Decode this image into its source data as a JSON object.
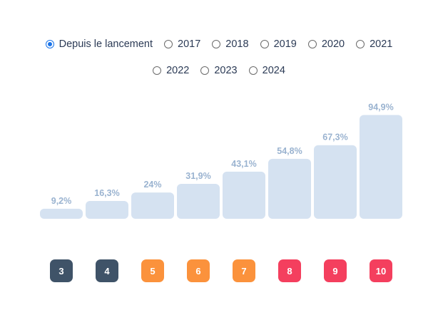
{
  "filters": {
    "options": [
      {
        "label": "Depuis le lancement",
        "checked": true
      },
      {
        "label": "2017",
        "checked": false
      },
      {
        "label": "2018",
        "checked": false
      },
      {
        "label": "2019",
        "checked": false
      },
      {
        "label": "2020",
        "checked": false
      },
      {
        "label": "2021",
        "checked": false
      },
      {
        "label": "2022",
        "checked": false
      },
      {
        "label": "2023",
        "checked": false
      },
      {
        "label": "2024",
        "checked": false
      }
    ]
  },
  "chart_data": {
    "type": "bar",
    "categories": [
      "3",
      "4",
      "5",
      "6",
      "7",
      "8",
      "9",
      "10"
    ],
    "values": [
      9.2,
      16.3,
      24,
      31.9,
      43.1,
      54.8,
      67.3,
      94.9
    ],
    "value_labels": [
      "9,2%",
      "16,3%",
      "24%",
      "31,9%",
      "43,1%",
      "54,8%",
      "67,3%",
      "94,9%"
    ],
    "category_colors": [
      "#3f5368",
      "#3f5368",
      "#fb923c",
      "#fb923c",
      "#fb923c",
      "#f43f5e",
      "#f43f5e",
      "#f43f5e"
    ],
    "bar_color": "#d5e2f1",
    "label_color": "#9ab3d0",
    "ylim": [
      0,
      100
    ],
    "grid": false,
    "title": "",
    "xlabel": "",
    "ylabel": ""
  }
}
